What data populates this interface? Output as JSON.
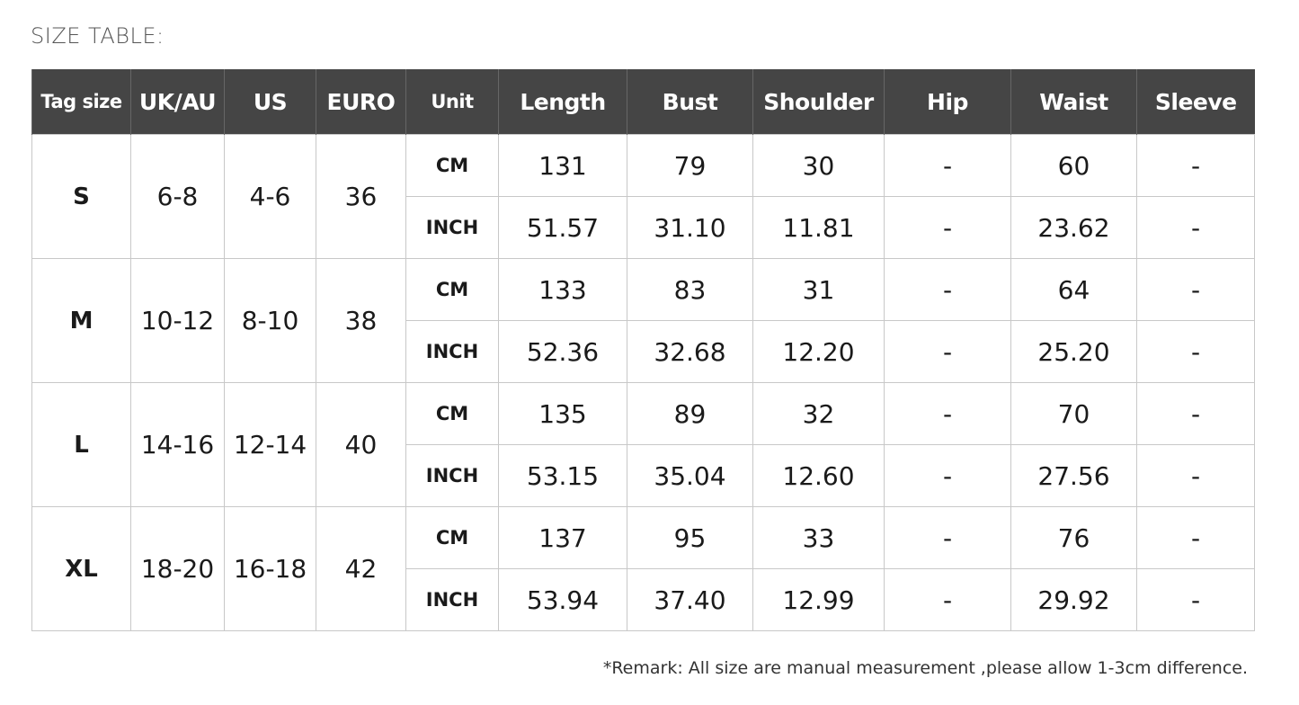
{
  "title": "SIZE TABLE:",
  "header_color": "#454545",
  "headers": [
    "Tag size",
    "UK/AU",
    "US",
    "EURO",
    "Unit",
    "Length",
    "Bust",
    "Shoulder",
    "Hip",
    "Waist",
    "Sleeve"
  ],
  "sizes": [
    {
      "tag": "S",
      "uk_au": "6-8",
      "us": "4-6",
      "euro": "36",
      "rows": [
        {
          "unit": "CM",
          "values": [
            "131",
            "79",
            "30",
            "-",
            "60",
            "-"
          ]
        },
        {
          "unit": "INCH",
          "values": [
            "51.57",
            "31.10",
            "11.81",
            "-",
            "23.62",
            "-"
          ]
        }
      ]
    },
    {
      "tag": "M",
      "uk_au": "10-12",
      "us": "8-10",
      "euro": "38",
      "rows": [
        {
          "unit": "CM",
          "values": [
            "133",
            "83",
            "31",
            "-",
            "64",
            "-"
          ]
        },
        {
          "unit": "INCH",
          "values": [
            "52.36",
            "32.68",
            "12.20",
            "-",
            "25.20",
            "-"
          ]
        }
      ]
    },
    {
      "tag": "L",
      "uk_au": "14-16",
      "us": "12-14",
      "euro": "40",
      "rows": [
        {
          "unit": "CM",
          "values": [
            "135",
            "89",
            "32",
            "-",
            "70",
            "-"
          ]
        },
        {
          "unit": "INCH",
          "values": [
            "53.15",
            "35.04",
            "12.60",
            "-",
            "27.56",
            "-"
          ]
        }
      ]
    },
    {
      "tag": "XL",
      "uk_au": "18-20",
      "us": "16-18",
      "euro": "42",
      "rows": [
        {
          "unit": "CM",
          "values": [
            "137",
            "95",
            "33",
            "-",
            "76",
            "-"
          ]
        },
        {
          "unit": "INCH",
          "values": [
            "53.94",
            "37.40",
            "12.99",
            "-",
            "29.92",
            "-"
          ]
        }
      ]
    }
  ],
  "remark": "*Remark: All size are manual measurement ,please allow 1-3cm difference."
}
